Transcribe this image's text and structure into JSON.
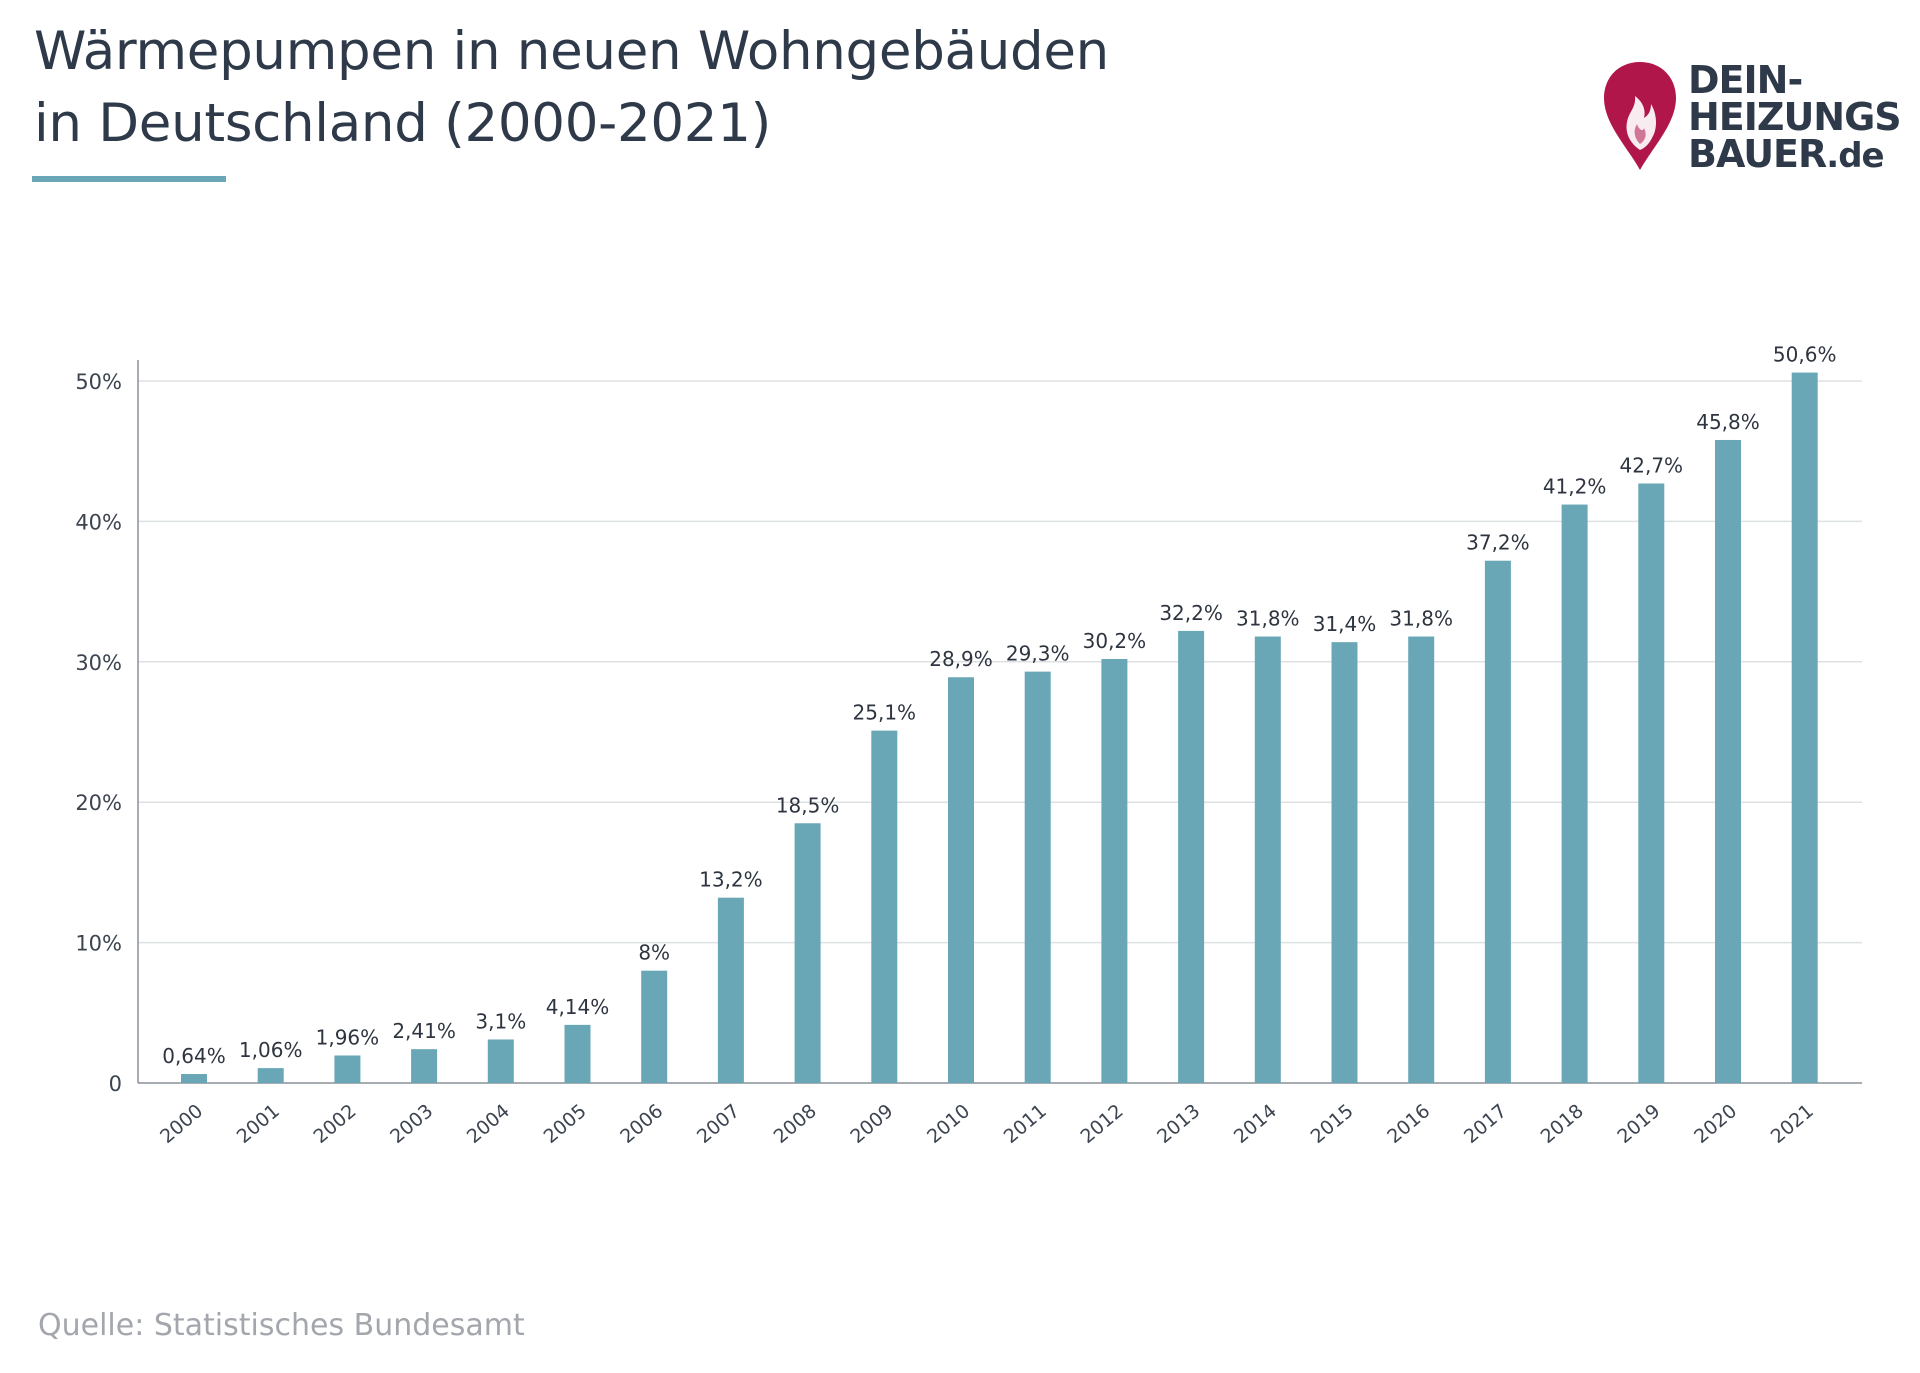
{
  "header": {
    "title_line1": "Wärmepumpen in neuen Wohngebäuden",
    "title_line2": "in Deutschland (2000-2021)"
  },
  "logo": {
    "line1": "DEIN-",
    "line2": "HEIZUNGS",
    "line3": "BAUER",
    "line3_suffix": ".de",
    "icon": "flame-pin-icon",
    "color": "#b0164a"
  },
  "footer": {
    "source": "Quelle: Statistisches Bundesamt"
  },
  "colors": {
    "bar": "#6aa7b6",
    "axis": "#8a9099",
    "grid": "#dde1e4",
    "text": "#2e3a49"
  },
  "chart_data": {
    "type": "bar",
    "title": "Wärmepumpen in neuen Wohngebäuden in Deutschland (2000-2021)",
    "xlabel": "",
    "ylabel": "",
    "ylim": [
      0,
      50
    ],
    "yticks": [
      0,
      10,
      20,
      30,
      40,
      50
    ],
    "ytick_labels": [
      "0",
      "10%",
      "20%",
      "30%",
      "40%",
      "50%"
    ],
    "grid": true,
    "categories": [
      "2000",
      "2001",
      "2002",
      "2003",
      "2004",
      "2005",
      "2006",
      "2007",
      "2008",
      "2009",
      "2010",
      "2011",
      "2012",
      "2013",
      "2014",
      "2015",
      "2016",
      "2017",
      "2018",
      "2019",
      "2020",
      "2021"
    ],
    "values": [
      0.64,
      1.06,
      1.96,
      2.41,
      3.1,
      4.14,
      8,
      13.2,
      18.5,
      25.1,
      28.9,
      29.3,
      30.2,
      32.2,
      31.8,
      31.4,
      31.8,
      37.2,
      41.2,
      42.7,
      45.8,
      50.6
    ],
    "labels": [
      "0,64%",
      "1,06%",
      "1,96%",
      "2,41%",
      "3,1%",
      "4,14%",
      "8%",
      "13,2%",
      "18,5%",
      "25,1%",
      "28,9%",
      "29,3%",
      "30,2%",
      "32,2%",
      "31,8%",
      "31,4%",
      "31,8%",
      "37,2%",
      "41,2%",
      "42,7%",
      "45,8%",
      "50,6%"
    ]
  }
}
